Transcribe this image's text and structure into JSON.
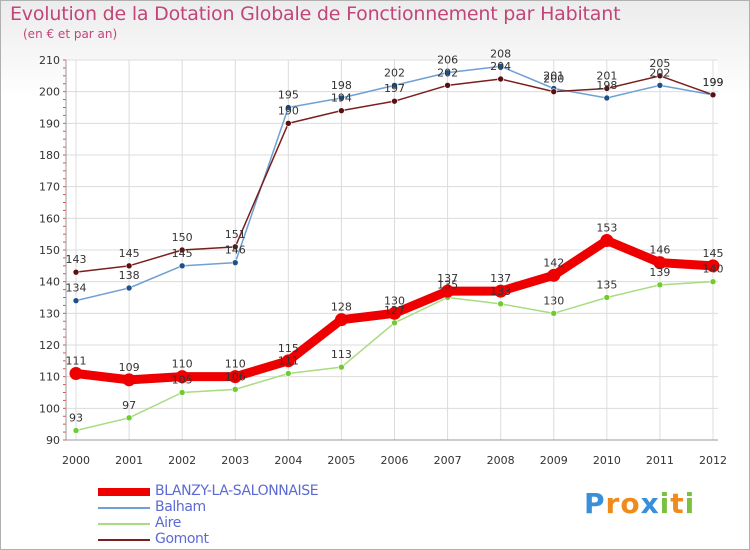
{
  "chart_data": {
    "type": "line",
    "title": "Evolution de la Dotation Globale de Fonctionnement par Habitant",
    "subtitle": "(en € et par an)",
    "x": [
      "2000",
      "2001",
      "2002",
      "2003",
      "2004",
      "2005",
      "2006",
      "2007",
      "2008",
      "2009",
      "2010",
      "2011",
      "2012"
    ],
    "ylim": [
      90,
      210
    ],
    "yticks": [
      90,
      100,
      110,
      120,
      130,
      140,
      150,
      160,
      170,
      180,
      190,
      200,
      210
    ],
    "grid": true,
    "legend_position": "bottom-left",
    "series": [
      {
        "name": "BLANZY-LA-SALONNAISE",
        "color": "#ee0000",
        "values": [
          111,
          109,
          110,
          110,
          115,
          128,
          130,
          137,
          137,
          142,
          153,
          146,
          145
        ]
      },
      {
        "name": "Balham",
        "color": "#6fa0d4",
        "values": [
          134,
          138,
          145,
          146,
          195,
          198,
          202,
          206,
          208,
          201,
          198,
          202,
          199
        ]
      },
      {
        "name": "Aire",
        "color": "#a8dc80",
        "values": [
          93,
          97,
          105,
          106,
          111,
          113,
          127,
          135,
          133,
          130,
          135,
          139,
          140
        ]
      },
      {
        "name": "Gomont",
        "color": "#7a1e1e",
        "values": [
          143,
          145,
          150,
          151,
          190,
          194,
          197,
          202,
          204,
          200,
          201,
          205,
          199
        ]
      }
    ],
    "data_labels": [
      {
        "series": 0,
        "labels": [
          "111",
          "109",
          "110",
          "110",
          "115",
          "128",
          "130",
          "137",
          "137",
          "142",
          "153",
          "146",
          "145"
        ]
      },
      {
        "series": 1,
        "labels": [
          "134",
          "138",
          "145",
          "146",
          "195",
          "198",
          "202",
          "206",
          "208",
          "201",
          "198",
          "202",
          "199"
        ]
      },
      {
        "series": 2,
        "labels": [
          "93",
          "97",
          "105",
          "106",
          "111",
          "113",
          "127",
          "135",
          "133",
          "130",
          "135",
          "139",
          "140"
        ]
      },
      {
        "series": 3,
        "labels": [
          "143",
          "145",
          "150",
          "151",
          "190",
          "194",
          "197",
          "202",
          "204",
          "200",
          "201",
          "205",
          "199"
        ]
      }
    ]
  },
  "logo": {
    "text": "Proxiti",
    "letters": [
      "P",
      "r",
      "o",
      "x",
      "i",
      "t",
      "i"
    ],
    "colors": [
      "#3b8fd8",
      "#f08a1c",
      "#f08a1c",
      "#3b8fd8",
      "#7ac142",
      "#f08a1c",
      "#7ac142"
    ]
  }
}
